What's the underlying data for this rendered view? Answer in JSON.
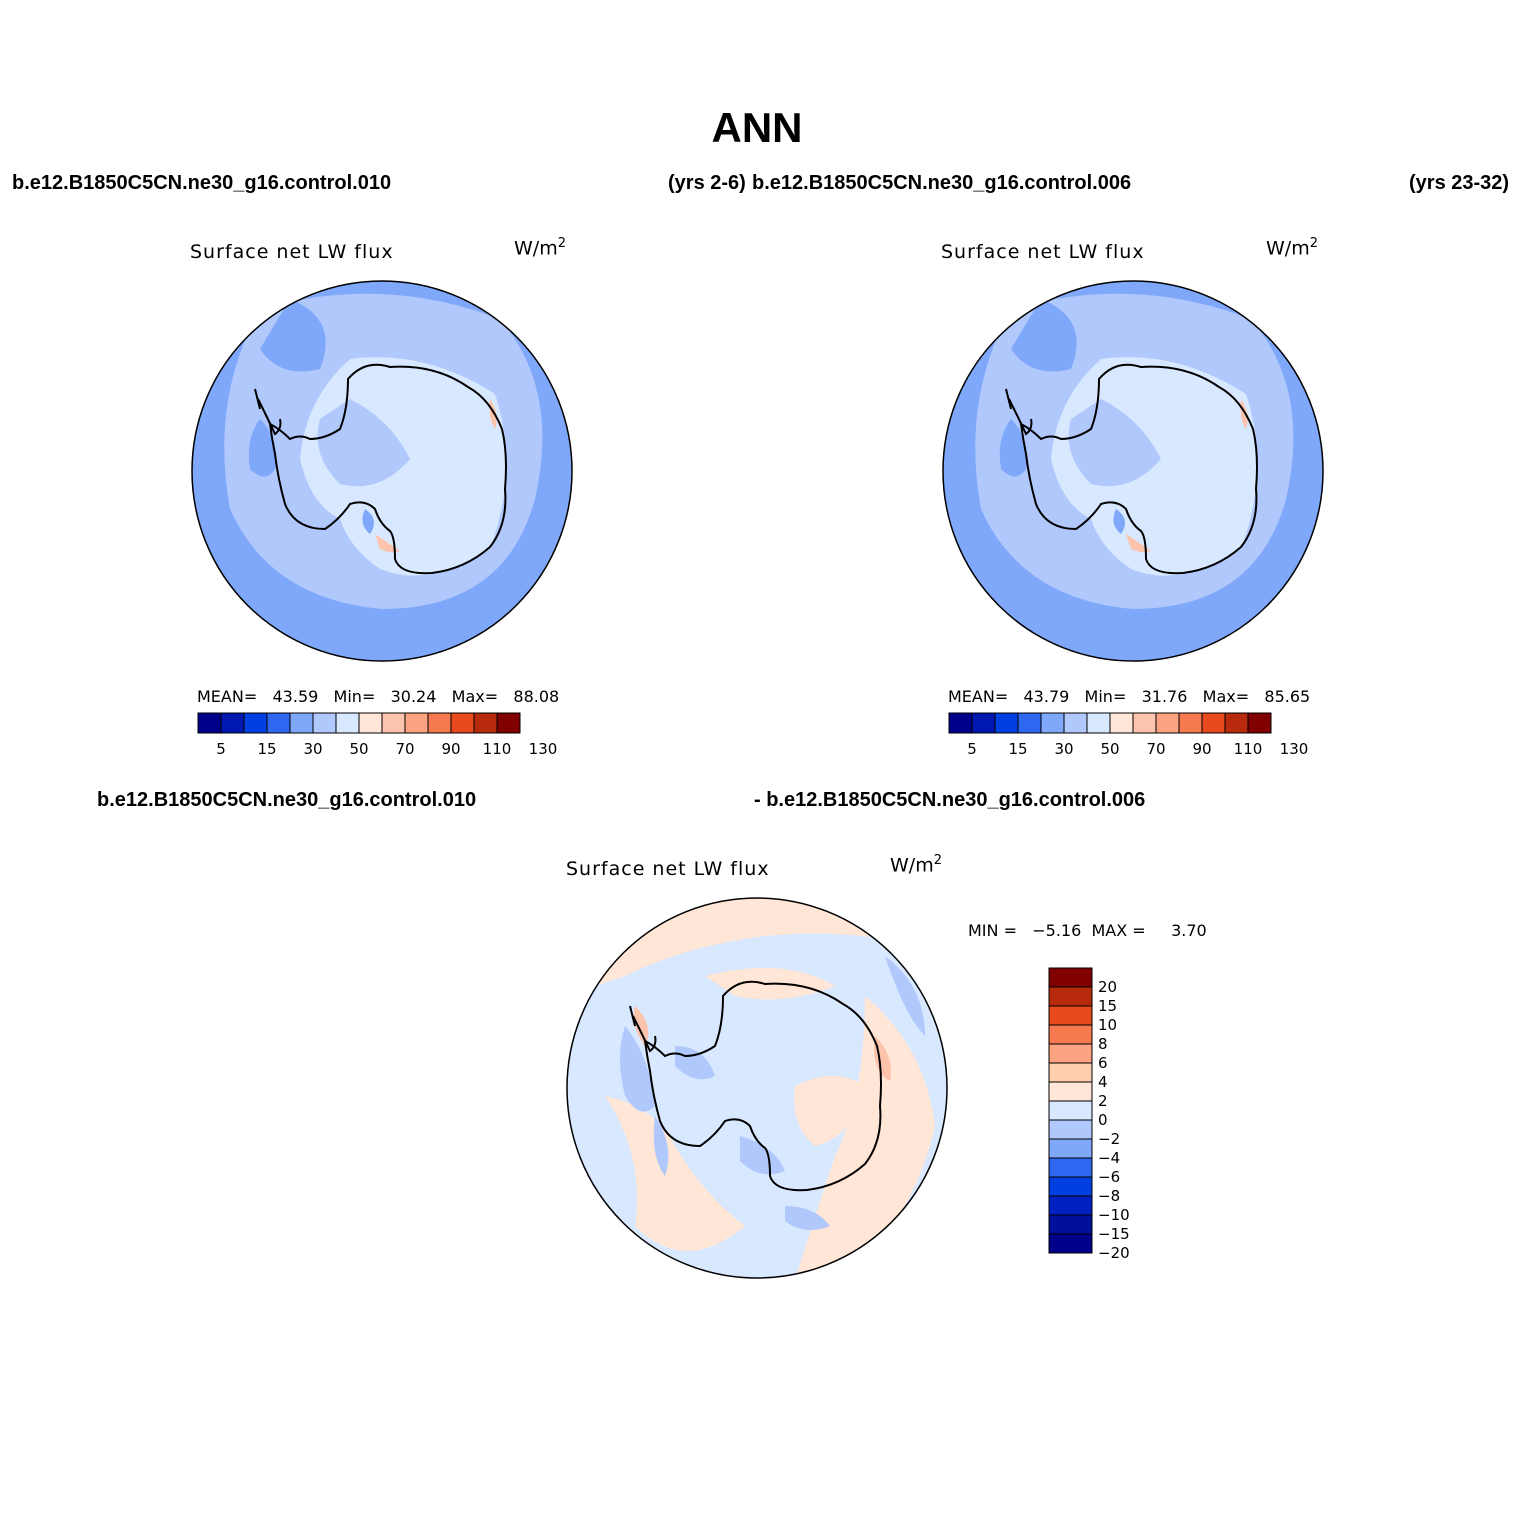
{
  "figure": {
    "title": "ANN",
    "case_left": "b.e12.B1850C5CN.ne30_g16.control.010",
    "years_left": "(yrs 2-6)",
    "case_right": "b.e12.B1850C5CN.ne30_g16.control.006",
    "years_right": "(yrs 23-32)",
    "diff_case_left": "b.e12.B1850C5CN.ne30_g16.control.010",
    "diff_case_right": "- b.e12.B1850C5CN.ne30_g16.control.006"
  },
  "panels": [
    {
      "id": "panel-case1",
      "title": "Surface net LW flux",
      "units": "W/m",
      "units_sup": "2",
      "stats_text": "MEAN=   43.59   Min=   30.24   Max=   88.08",
      "mean": 43.59,
      "min": 30.24,
      "max": 88.08,
      "colorbar_labels": [
        "5",
        "15",
        "30",
        "50",
        "70",
        "90",
        "110",
        "130"
      ]
    },
    {
      "id": "panel-case2",
      "title": "Surface net LW flux",
      "units": "W/m",
      "units_sup": "2",
      "stats_text": "MEAN=   43.79   Min=   31.76   Max=   85.65",
      "mean": 43.79,
      "min": 31.76,
      "max": 85.65,
      "colorbar_labels": [
        "5",
        "15",
        "30",
        "50",
        "70",
        "90",
        "110",
        "130"
      ]
    },
    {
      "id": "panel-diff",
      "title": "Surface net LW flux",
      "units": "W/m",
      "units_sup": "2",
      "stats_text": "MIN =   −5.16  MAX =     3.70",
      "min": -5.16,
      "max": 3.7,
      "colorbar_labels": [
        "20",
        "15",
        "10",
        "8",
        "6",
        "4",
        "2",
        "0",
        "−2",
        "−4",
        "−6",
        "−8",
        "−10",
        "−15",
        "−20"
      ]
    }
  ],
  "colors": {
    "abs_scale": [
      "#00008b",
      "#0018b0",
      "#0040e0",
      "#2f68f0",
      "#7fa8fa",
      "#b0c8fc",
      "#d8e8fe",
      "#ffe6d6",
      "#fcc4ac",
      "#fca482",
      "#f67a50",
      "#e84a1e",
      "#b82a0c",
      "#800000"
    ],
    "diff_scale": [
      "#800000",
      "#b82a0c",
      "#e84a1e",
      "#f67a50",
      "#fca482",
      "#ffcfb0",
      "#ffe6d6",
      "#d8e8fe",
      "#b0c8fc",
      "#7fa8fa",
      "#2f68f0",
      "#0040e0",
      "#0020c0",
      "#00109a",
      "#00008b"
    ],
    "coastline": "#000000"
  }
}
